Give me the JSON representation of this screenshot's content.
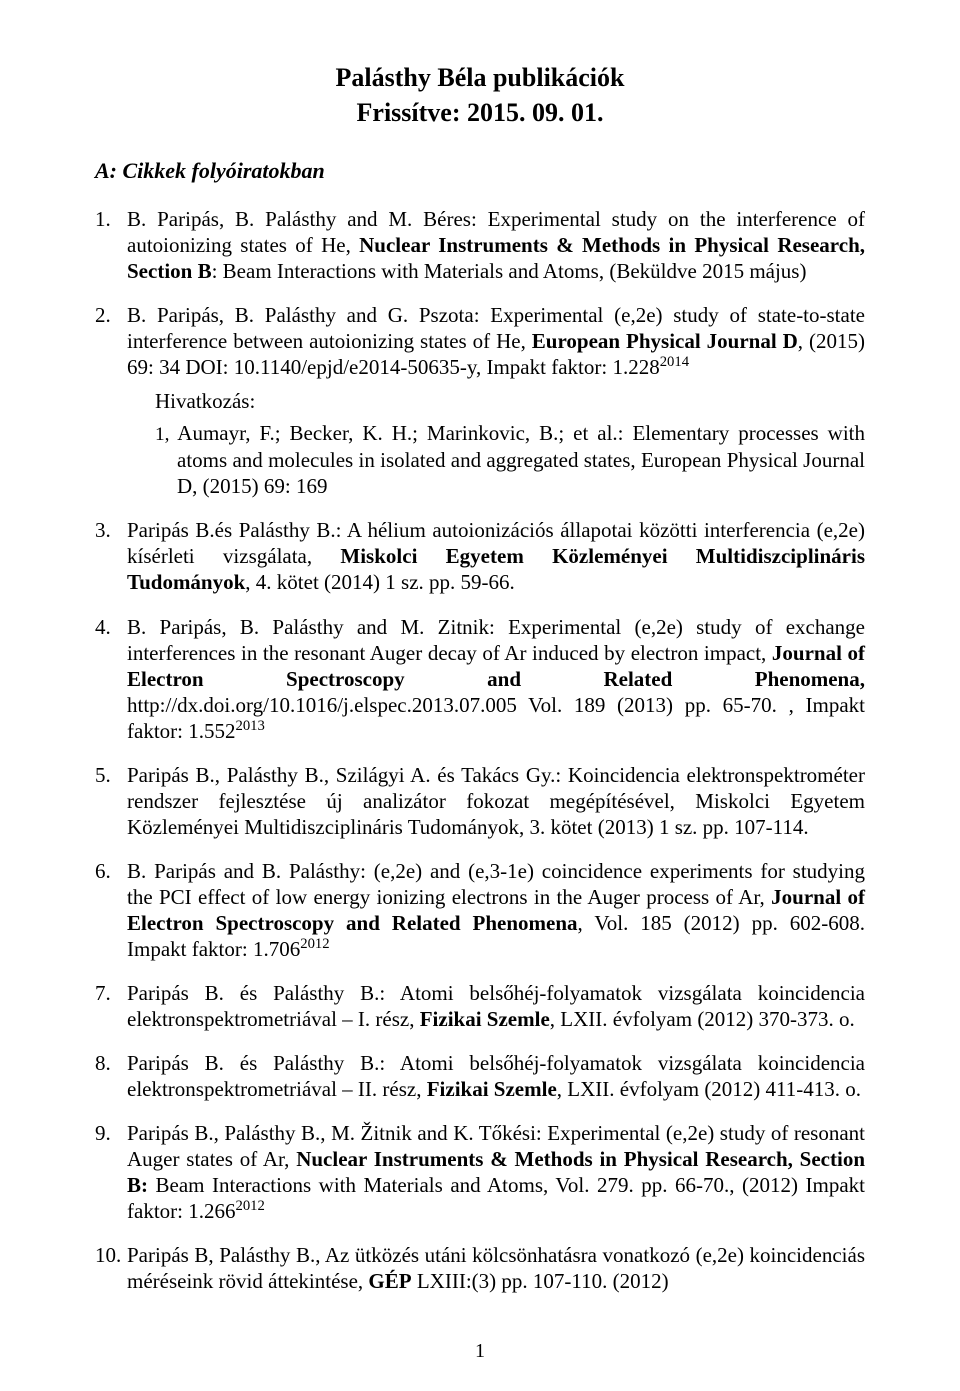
{
  "title": "Palásthy Béla publikációk",
  "subtitle": "Frissítve: 2015. 09. 01.",
  "section_heading": "A: Cikkek folyóiratokban",
  "page_number": "1",
  "hivatkozas_label": "Hivatkozás:",
  "references": [
    {
      "pre": "B. Paripás, B. Palásthy and M. Béres: Experimental study on the interference of autoionizing states of He, ",
      "bold": "Nuclear Instruments & Methods in Physical Research, Section B",
      "post": ": Beam Interactions with Materials and Atoms, (Beküldve 2015 május)"
    },
    {
      "pre": "B. Paripás, B. Palásthy and G. Pszota: Experimental (e,2e) study of state-to-state interference between autoionizing states of He, ",
      "bold": "European Physical Journal D",
      "post": ", (2015) 69: 34 DOI: 10.1140/epjd/e2014-50635-y, Impakt faktor: 1.228",
      "sup": "2014",
      "citations": [
        {
          "num": "1,",
          "text": " Aumayr, F.; Becker, K. H.; Marinkovic, B.; et al.: Elementary processes with atoms and molecules in isolated and aggregated states, European Physical Journal D, (2015) 69: 169"
        }
      ]
    },
    {
      "pre": "Paripás B.és Palásthy B.: A hélium autoionizációs állapotai közötti interferencia (e,2e) kísérleti vizsgálata, ",
      "bold": "Miskolci Egyetem Közleményei Multidiszciplináris Tudományok",
      "post": ", 4. kötet (2014) 1 sz. pp. 59-66."
    },
    {
      "pre": "B. Paripás, B. Palásthy and M. Zitnik: Experimental (e,2e) study of exchange interferences in the resonant Auger decay of Ar induced by electron impact, ",
      "bold": "Journal of Electron Spectroscopy and Related Phenomena,",
      "post": " http://dx.doi.org/10.1016/j.elspec.2013.07.005 Vol. 189 (2013) pp. 65-70. , Impakt faktor: 1.552",
      "sup": "2013"
    },
    {
      "pre": "Paripás B., Palásthy B., Szilágyi A. és Takács Gy.: Koincidencia elektronspektrométer rendszer fejlesztése új analizátor fokozat megépítésével, Miskolci Egyetem Közleményei Multidiszciplináris Tudományok, 3. kötet (2013) 1 sz. pp. 107-114.",
      "bold": "",
      "post": ""
    },
    {
      "pre": "B. Paripás and B. Palásthy: (e,2e) and (e,3-1e) coincidence experiments for studying the PCI effect of low energy ionizing electrons in the Auger process of Ar, ",
      "bold": "Journal of Electron Spectroscopy and Related Phenomena",
      "post": ", Vol. 185 (2012) pp. 602-608. Impakt faktor: 1.706",
      "sup": "2012"
    },
    {
      "pre": "Paripás B. és Palásthy B.: Atomi belsőhéj-folyamatok vizsgálata koincidencia elektronspektrometriával – I. rész, ",
      "bold": "Fizikai Szemle",
      "post": ", LXII. évfolyam (2012) 370-373. o."
    },
    {
      "pre": "Paripás B. és Palásthy B.: Atomi belsőhéj-folyamatok vizsgálata koincidencia elektronspektrometriával – II. rész, ",
      "bold": "Fizikai Szemle",
      "post": ", LXII. évfolyam (2012) 411-413. o."
    },
    {
      "pre": "Paripás B., Palásthy B., M. Žitnik and K. Tőkési: Experimental (e,2e) study of resonant Auger states of Ar, ",
      "bold": "Nuclear Instruments & Methods in Physical Research, Section B:",
      "post": " Beam Interactions with Materials and Atoms, Vol. 279. pp. 66-70., (2012) Impakt faktor: 1.266",
      "sup": "2012"
    },
    {
      "pre": "Paripás B, Palásthy B., Az ütközés utáni kölcsönhatásra vonatkozó (e,2e) koincidenciás méréseink rövid áttekintése, ",
      "bold": "GÉP",
      "post": " LXIII:(3) pp. 107-110. (2012)"
    }
  ]
}
